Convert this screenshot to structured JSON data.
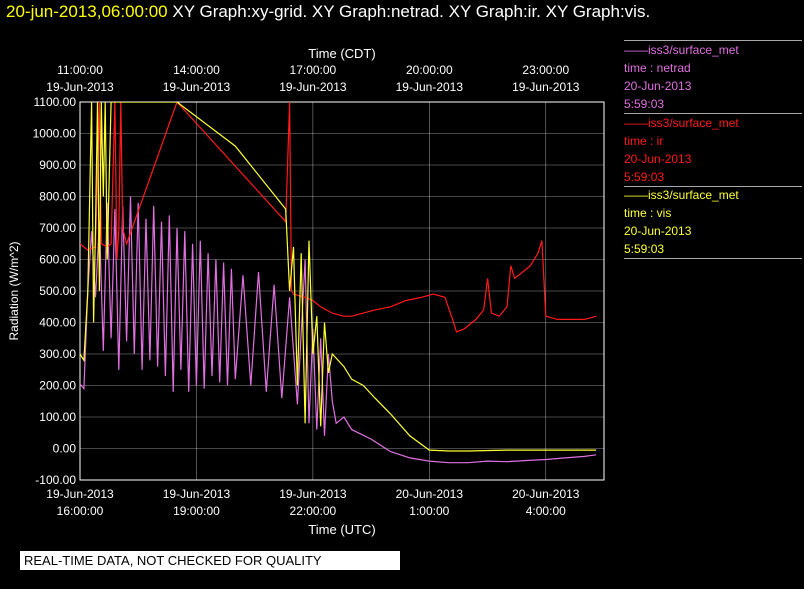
{
  "header": {
    "datetime": "20-jun-2013,06:00:00",
    "graphs": "XY Graph:xy-grid.  XY Graph:netrad.  XY Graph:ir.  XY Graph:vis."
  },
  "legend": [
    {
      "source": "iss3/surface_met",
      "field": "time : netrad",
      "date": "20-Jun-2013",
      "time": "5:59:03",
      "color": "#e070e0"
    },
    {
      "source": "iss3/surface_met",
      "field": "time : ir",
      "date": "20-Jun-2013",
      "time": "5:59:03",
      "color": "#ff1a1a"
    },
    {
      "source": "iss3/surface_met",
      "field": "time : vis",
      "date": "20-Jun-2013",
      "time": "5:59:03",
      "color": "#ffff33"
    }
  ],
  "disclaimer": "REAL-TIME DATA, NOT CHECKED FOR QUALITY",
  "chart_data": {
    "type": "line",
    "xlabel_bottom": "Time (UTC)",
    "xlabel_top": "Time (CDT)",
    "ylabel": "Radiation  (W/m^2)",
    "xlim_hours_utc": [
      0,
      13.5
    ],
    "ylim": [
      -100,
      1100
    ],
    "yticks": [
      "1100.00",
      "1000.00",
      "900.00",
      "800.00",
      "700.00",
      "600.00",
      "500.00",
      "400.00",
      "300.00",
      "200.00",
      "100.00",
      "0.00",
      "-100.00"
    ],
    "ytick_values": [
      1100,
      1000,
      900,
      800,
      700,
      600,
      500,
      400,
      300,
      200,
      100,
      0,
      -100
    ],
    "xticks_bottom": [
      {
        "h": 0,
        "date": "19-Jun-2013",
        "time": "16:00:00"
      },
      {
        "h": 3,
        "date": "19-Jun-2013",
        "time": "19:00:00"
      },
      {
        "h": 6,
        "date": "19-Jun-2013",
        "time": "22:00:00"
      },
      {
        "h": 9,
        "date": "20-Jun-2013",
        "time": "1:00:00"
      },
      {
        "h": 12,
        "date": "20-Jun-2013",
        "time": "4:00:00"
      }
    ],
    "xticks_top": [
      {
        "h": 0,
        "time": "11:00:00",
        "date": "19-Jun-2013"
      },
      {
        "h": 3,
        "time": "14:00:00",
        "date": "19-Jun-2013"
      },
      {
        "h": 6,
        "time": "17:00:00",
        "date": "19-Jun-2013"
      },
      {
        "h": 9,
        "time": "20:00:00",
        "date": "19-Jun-2013"
      },
      {
        "h": 12,
        "time": "23:00:00",
        "date": "19-Jun-2013"
      }
    ],
    "grid": true,
    "series": [
      {
        "name": "netrad",
        "color": "#e070e0",
        "points": [
          [
            0,
            205
          ],
          [
            0.1,
            190
          ],
          [
            0.2,
            500
          ],
          [
            0.3,
            690
          ],
          [
            0.4,
            480
          ],
          [
            0.5,
            720
          ],
          [
            0.6,
            310
          ],
          [
            0.7,
            780
          ],
          [
            0.8,
            350
          ],
          [
            0.9,
            760
          ],
          [
            1.0,
            250
          ],
          [
            1.1,
            770
          ],
          [
            1.2,
            340
          ],
          [
            1.3,
            800
          ],
          [
            1.4,
            300
          ],
          [
            1.5,
            780
          ],
          [
            1.6,
            250
          ],
          [
            1.7,
            730
          ],
          [
            1.8,
            280
          ],
          [
            1.9,
            770
          ],
          [
            2.0,
            260
          ],
          [
            2.1,
            720
          ],
          [
            2.2,
            230
          ],
          [
            2.3,
            740
          ],
          [
            2.4,
            180
          ],
          [
            2.5,
            700
          ],
          [
            2.6,
            250
          ],
          [
            2.7,
            690
          ],
          [
            2.8,
            180
          ],
          [
            2.9,
            650
          ],
          [
            3.0,
            200
          ],
          [
            3.1,
            660
          ],
          [
            3.2,
            190
          ],
          [
            3.3,
            620
          ],
          [
            3.4,
            230
          ],
          [
            3.5,
            600
          ],
          [
            3.6,
            210
          ],
          [
            3.7,
            590
          ],
          [
            3.8,
            200
          ],
          [
            3.9,
            570
          ],
          [
            4.0,
            220
          ],
          [
            4.2,
            550
          ],
          [
            4.4,
            200
          ],
          [
            4.6,
            560
          ],
          [
            4.8,
            180
          ],
          [
            5.0,
            520
          ],
          [
            5.2,
            160
          ],
          [
            5.4,
            480
          ],
          [
            5.6,
            140
          ],
          [
            5.8,
            600
          ],
          [
            5.9,
            80
          ],
          [
            6.0,
            380
          ],
          [
            6.1,
            60
          ],
          [
            6.2,
            350
          ],
          [
            6.3,
            40
          ],
          [
            6.4,
            300
          ],
          [
            6.5,
            150
          ],
          [
            6.6,
            80
          ],
          [
            6.8,
            100
          ],
          [
            7.0,
            60
          ],
          [
            7.5,
            30
          ],
          [
            8.0,
            -10
          ],
          [
            8.5,
            -30
          ],
          [
            9.0,
            -40
          ],
          [
            9.5,
            -45
          ],
          [
            10,
            -45
          ],
          [
            10.5,
            -40
          ],
          [
            11,
            -42
          ],
          [
            11.5,
            -38
          ],
          [
            12,
            -35
          ],
          [
            12.5,
            -30
          ],
          [
            13,
            -25
          ],
          [
            13.3,
            -20
          ]
        ]
      },
      {
        "name": "ir",
        "color": "#ff1a1a",
        "points": [
          [
            0,
            650
          ],
          [
            0.2,
            630
          ],
          [
            0.4,
            640
          ],
          [
            0.5,
            1100
          ],
          [
            0.55,
            650
          ],
          [
            0.7,
            640
          ],
          [
            0.8,
            650
          ],
          [
            0.9,
            1100
          ],
          [
            0.95,
            600
          ],
          [
            1.0,
            690
          ],
          [
            1.05,
            1100
          ],
          [
            1.1,
            700
          ],
          [
            1.2,
            650
          ],
          [
            2.5,
            1100
          ],
          [
            5.3,
            720
          ],
          [
            5.4,
            1100
          ],
          [
            5.45,
            500
          ],
          [
            5.5,
            490
          ],
          [
            5.8,
            480
          ],
          [
            6.0,
            470
          ],
          [
            6.2,
            450
          ],
          [
            6.5,
            430
          ],
          [
            6.8,
            420
          ],
          [
            7.0,
            420
          ],
          [
            7.3,
            430
          ],
          [
            7.6,
            440
          ],
          [
            8.0,
            450
          ],
          [
            8.4,
            470
          ],
          [
            8.8,
            480
          ],
          [
            9.1,
            490
          ],
          [
            9.4,
            480
          ],
          [
            9.6,
            410
          ],
          [
            9.7,
            370
          ],
          [
            9.9,
            380
          ],
          [
            10.2,
            410
          ],
          [
            10.4,
            440
          ],
          [
            10.5,
            540
          ],
          [
            10.6,
            430
          ],
          [
            10.8,
            420
          ],
          [
            11.0,
            450
          ],
          [
            11.1,
            580
          ],
          [
            11.2,
            540
          ],
          [
            11.4,
            560
          ],
          [
            11.6,
            580
          ],
          [
            11.8,
            620
          ],
          [
            11.9,
            660
          ],
          [
            12.0,
            420
          ],
          [
            12.3,
            410
          ],
          [
            12.7,
            410
          ],
          [
            13.0,
            410
          ],
          [
            13.3,
            420
          ]
        ]
      },
      {
        "name": "vis",
        "color": "#ffff33",
        "points": [
          [
            0,
            300
          ],
          [
            0.1,
            280
          ],
          [
            0.2,
            500
          ],
          [
            0.3,
            1100
          ],
          [
            0.35,
            400
          ],
          [
            0.4,
            700
          ],
          [
            0.45,
            1100
          ],
          [
            0.5,
            500
          ],
          [
            0.55,
            1100
          ],
          [
            0.6,
            800
          ],
          [
            0.65,
            1100
          ],
          [
            0.7,
            600
          ],
          [
            0.8,
            1100
          ],
          [
            0.9,
            1100
          ],
          [
            1.0,
            1100
          ],
          [
            2.5,
            1100
          ],
          [
            4.0,
            960
          ],
          [
            5.3,
            760
          ],
          [
            5.4,
            500
          ],
          [
            5.5,
            640
          ],
          [
            5.6,
            200
          ],
          [
            5.7,
            620
          ],
          [
            5.8,
            80
          ],
          [
            5.9,
            660
          ],
          [
            6.0,
            300
          ],
          [
            6.1,
            420
          ],
          [
            6.2,
            70
          ],
          [
            6.3,
            400
          ],
          [
            6.4,
            240
          ],
          [
            6.5,
            300
          ],
          [
            6.8,
            260
          ],
          [
            7.0,
            220
          ],
          [
            7.3,
            200
          ],
          [
            7.6,
            160
          ],
          [
            8.0,
            110
          ],
          [
            8.5,
            40
          ],
          [
            9.0,
            -5
          ],
          [
            9.5,
            -8
          ],
          [
            10,
            -8
          ],
          [
            11,
            -5
          ],
          [
            12,
            -5
          ],
          [
            13,
            -5
          ],
          [
            13.3,
            -5
          ]
        ]
      }
    ]
  }
}
